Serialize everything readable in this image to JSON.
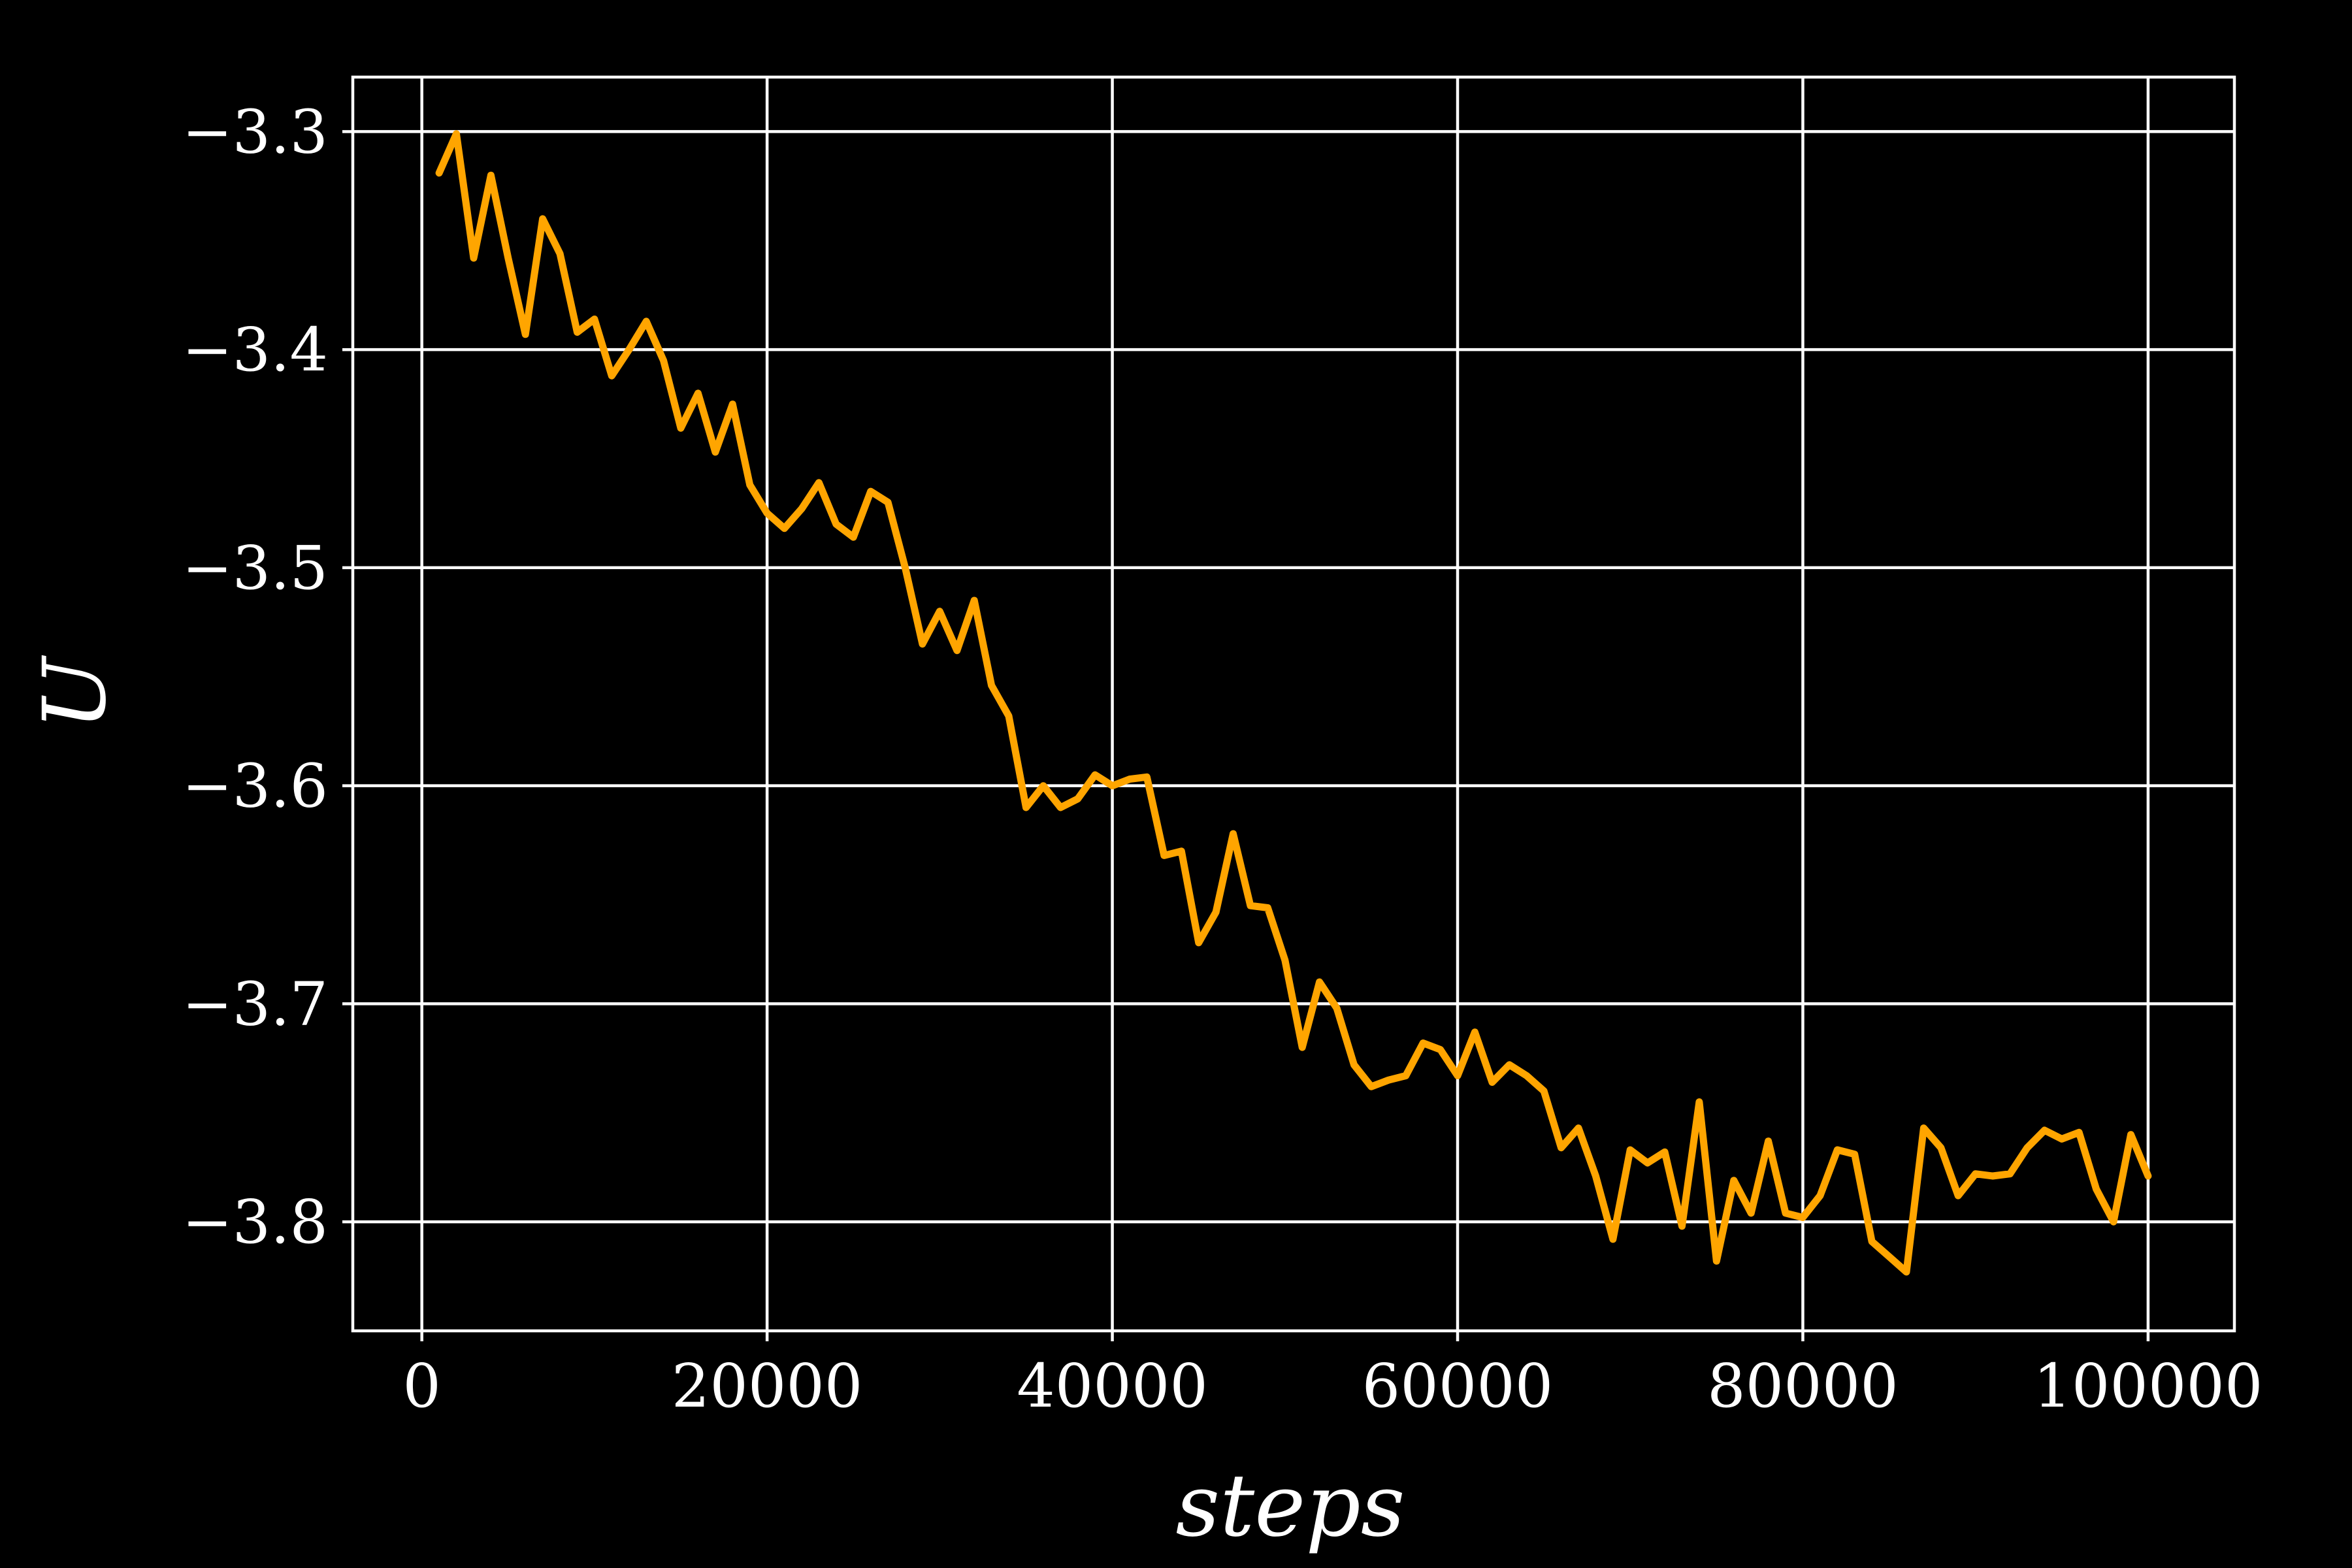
{
  "chart_data": {
    "type": "line",
    "title": "",
    "xlabel": "steps",
    "ylabel": "U",
    "xlim": [
      -4000,
      105000
    ],
    "ylim": [
      -3.85,
      -3.275
    ],
    "xticks": [
      0,
      20000,
      40000,
      60000,
      80000,
      100000
    ],
    "xtick_labels": [
      "0",
      "20000",
      "40000",
      "60000",
      "80000",
      "100000"
    ],
    "yticks": [
      -3.3,
      -3.4,
      -3.5,
      -3.6,
      -3.7,
      -3.8
    ],
    "ytick_labels": [
      "−3.3",
      "−3.4",
      "−3.5",
      "−3.6",
      "−3.7",
      "−3.8"
    ],
    "grid": true,
    "legend": "none",
    "colors": {
      "background": "#000000",
      "axes": "#ffffff",
      "series": "#ffa500"
    },
    "series": [
      {
        "values": [
          [
            1000,
            -3.319
          ],
          [
            2000,
            -3.301
          ],
          [
            3000,
            -3.358
          ],
          [
            4000,
            -3.32
          ],
          [
            5000,
            -3.358
          ],
          [
            6000,
            -3.393
          ],
          [
            7000,
            -3.34
          ],
          [
            8000,
            -3.356
          ],
          [
            9000,
            -3.392
          ],
          [
            10000,
            -3.386
          ],
          [
            11000,
            -3.412
          ],
          [
            12000,
            -3.4
          ],
          [
            13000,
            -3.387
          ],
          [
            14000,
            -3.405
          ],
          [
            15000,
            -3.436
          ],
          [
            16000,
            -3.42
          ],
          [
            17000,
            -3.447
          ],
          [
            18000,
            -3.425
          ],
          [
            19000,
            -3.462
          ],
          [
            20000,
            -3.475
          ],
          [
            21000,
            -3.482
          ],
          [
            22000,
            -3.473
          ],
          [
            23000,
            -3.461
          ],
          [
            24000,
            -3.48
          ],
          [
            25000,
            -3.486
          ],
          [
            26000,
            -3.465
          ],
          [
            27000,
            -3.47
          ],
          [
            28000,
            -3.5
          ],
          [
            29000,
            -3.535
          ],
          [
            30000,
            -3.52
          ],
          [
            31000,
            -3.538
          ],
          [
            32000,
            -3.515
          ],
          [
            33000,
            -3.554
          ],
          [
            34000,
            -3.568
          ],
          [
            35000,
            -3.61
          ],
          [
            36000,
            -3.6
          ],
          [
            37000,
            -3.61
          ],
          [
            38000,
            -3.606
          ],
          [
            39000,
            -3.595
          ],
          [
            40000,
            -3.6
          ],
          [
            41000,
            -3.597
          ],
          [
            42000,
            -3.596
          ],
          [
            43000,
            -3.632
          ],
          [
            44000,
            -3.63
          ],
          [
            45000,
            -3.672
          ],
          [
            46000,
            -3.658
          ],
          [
            47000,
            -3.622
          ],
          [
            48000,
            -3.655
          ],
          [
            49000,
            -3.656
          ],
          [
            50000,
            -3.68
          ],
          [
            51000,
            -3.72
          ],
          [
            52000,
            -3.69
          ],
          [
            53000,
            -3.702
          ],
          [
            54000,
            -3.728
          ],
          [
            55000,
            -3.738
          ],
          [
            56000,
            -3.735
          ],
          [
            57000,
            -3.733
          ],
          [
            58000,
            -3.718
          ],
          [
            59000,
            -3.721
          ],
          [
            60000,
            -3.733
          ],
          [
            61000,
            -3.713
          ],
          [
            62000,
            -3.736
          ],
          [
            63000,
            -3.728
          ],
          [
            64000,
            -3.733
          ],
          [
            65000,
            -3.74
          ],
          [
            66000,
            -3.766
          ],
          [
            67000,
            -3.757
          ],
          [
            68000,
            -3.779
          ],
          [
            69000,
            -3.808
          ],
          [
            70000,
            -3.767
          ],
          [
            71000,
            -3.773
          ],
          [
            72000,
            -3.768
          ],
          [
            73000,
            -3.802
          ],
          [
            74000,
            -3.745
          ],
          [
            75000,
            -3.818
          ],
          [
            76000,
            -3.781
          ],
          [
            77000,
            -3.796
          ],
          [
            78000,
            -3.763
          ],
          [
            79000,
            -3.796
          ],
          [
            80000,
            -3.798
          ],
          [
            81000,
            -3.788
          ],
          [
            82000,
            -3.767
          ],
          [
            83000,
            -3.769
          ],
          [
            84000,
            -3.809
          ],
          [
            85000,
            -3.816
          ],
          [
            86000,
            -3.823
          ],
          [
            87000,
            -3.757
          ],
          [
            88000,
            -3.766
          ],
          [
            89000,
            -3.788
          ],
          [
            90000,
            -3.778
          ],
          [
            91000,
            -3.779
          ],
          [
            92000,
            -3.778
          ],
          [
            93000,
            -3.766
          ],
          [
            94000,
            -3.758
          ],
          [
            95000,
            -3.762
          ],
          [
            96000,
            -3.759
          ],
          [
            97000,
            -3.785
          ],
          [
            98000,
            -3.8
          ],
          [
            99000,
            -3.76
          ],
          [
            100000,
            -3.779
          ]
        ]
      }
    ]
  }
}
